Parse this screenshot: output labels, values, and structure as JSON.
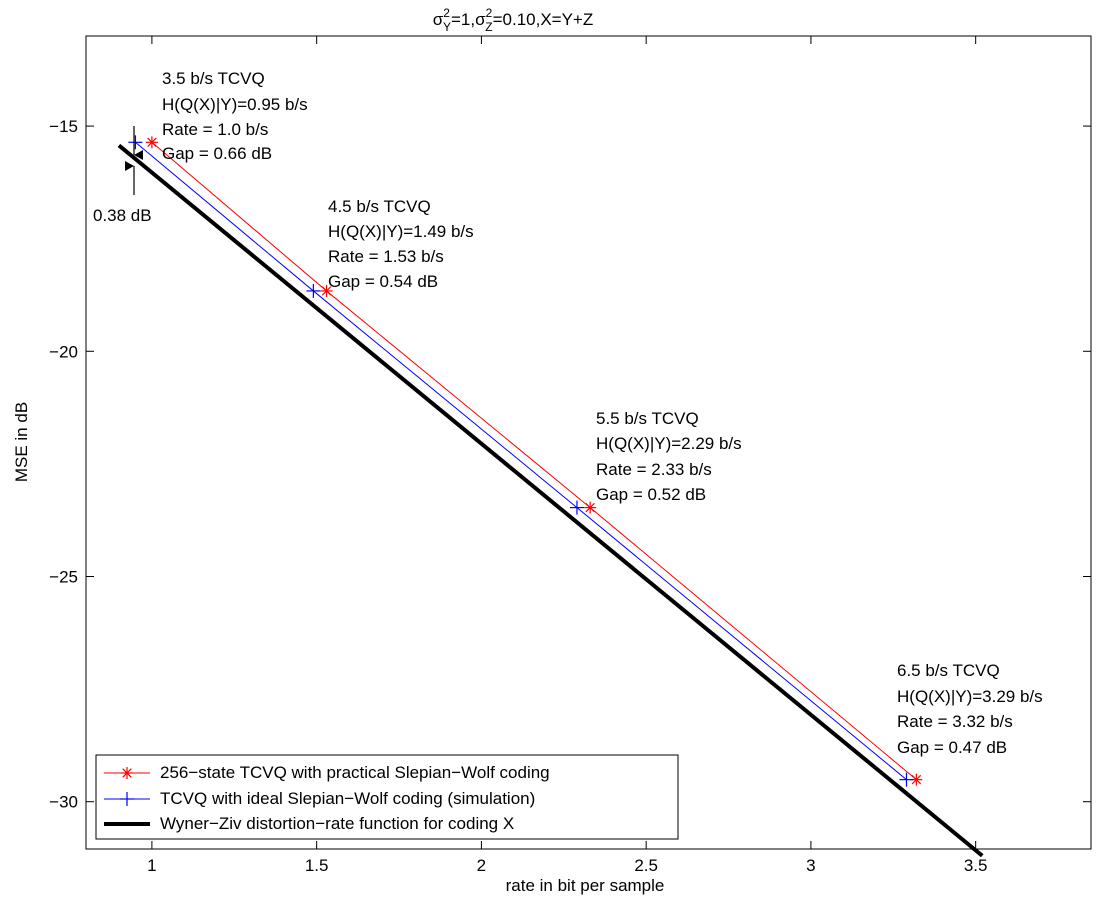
{
  "chart_data": {
    "type": "line",
    "title": {
      "sigma": "σ",
      "y_sub": "Y",
      "z_sub": "Z",
      "sup": "2",
      "part1": "=1,",
      "part2": "=0.10,X=Y+Z"
    },
    "xlabel": "rate in bit per sample",
    "ylabel": "MSE in dB",
    "xlim": [
      0.8,
      3.85
    ],
    "ylim": [
      -31.05,
      -13.0
    ],
    "xticks": [
      1,
      1.5,
      2,
      2.5,
      3,
      3.5
    ],
    "xtick_labels": [
      "1",
      "1.5",
      "2",
      "2.5",
      "3",
      "3.5"
    ],
    "yticks": [
      -30,
      -25,
      -20,
      -15
    ],
    "ytick_labels": [
      "−30",
      "−25",
      "−20",
      "−15"
    ],
    "grid": false,
    "legend_position": "bottom-left",
    "series": [
      {
        "name": "256−state TCVQ with practical Slepian−Wolf coding",
        "color": "#ff0000",
        "marker": "star",
        "x": [
          1.0,
          1.53,
          2.33,
          3.32
        ],
        "y": [
          -15.36,
          -18.66,
          -23.47,
          -29.51
        ]
      },
      {
        "name": "TCVQ with ideal Slepian−Wolf coding (simulation)",
        "color": "#0000ff",
        "marker": "plus",
        "x": [
          0.95,
          1.49,
          2.29,
          3.29
        ],
        "y": [
          -15.36,
          -18.66,
          -23.47,
          -29.51
        ]
      },
      {
        "name": "Wyner−Ziv distortion−rate function for coding X",
        "color": "#000000",
        "marker": "none",
        "x": [
          0.9,
          3.52
        ],
        "y": [
          -15.43,
          -31.2
        ]
      }
    ],
    "annotations": [
      {
        "lines": [
          "3.5 b/s TCVQ",
          "H(Q(X)|Y)=0.95 b/s",
          "Rate = 1.0 b/s",
          "Gap = 0.66 dB"
        ]
      },
      {
        "lines": [
          "4.5 b/s TCVQ",
          "H(Q(X)|Y)=1.49 b/s",
          "Rate = 1.53 b/s",
          "Gap = 0.54 dB"
        ]
      },
      {
        "lines": [
          "5.5 b/s TCVQ",
          "H(Q(X)|Y)=2.29 b/s",
          "Rate = 2.33 b/s",
          "Gap = 0.52 dB"
        ]
      },
      {
        "lines": [
          "6.5 b/s TCVQ",
          "H(Q(X)|Y)=3.29 b/s",
          "Rate = 3.32 b/s",
          "Gap = 0.47 dB"
        ]
      }
    ],
    "gap_marker_label": "0.38 dB"
  }
}
